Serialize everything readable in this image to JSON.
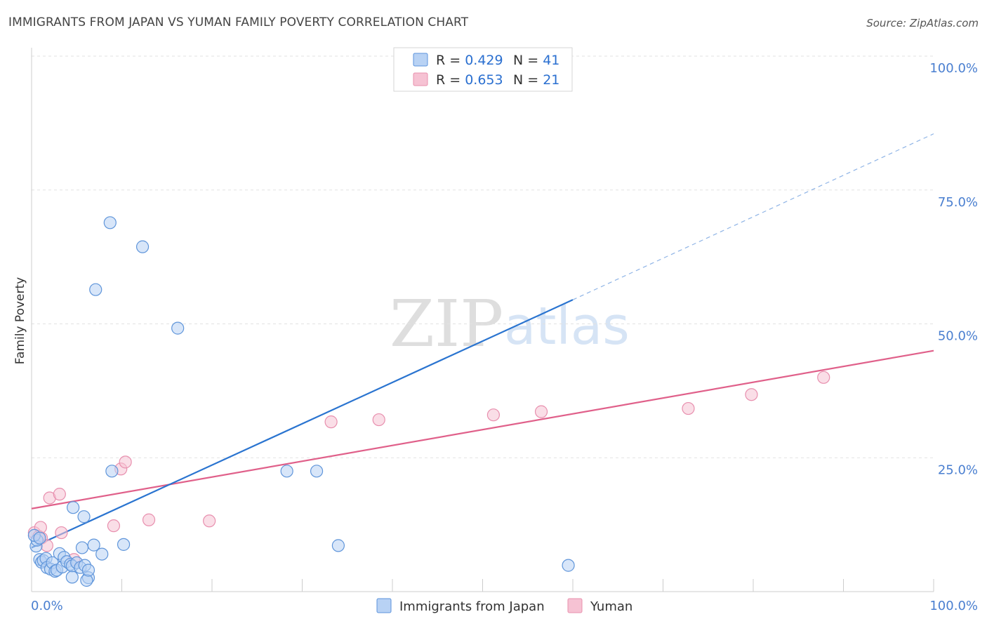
{
  "title": "IMMIGRANTS FROM JAPAN VS YUMAN FAMILY POVERTY CORRELATION CHART",
  "source": "Source: ZipAtlas.com",
  "watermark": {
    "zip": "ZIP",
    "atlas": "atlas"
  },
  "colors": {
    "blue": "#2a74d0",
    "blue_fill": "#b8d2f4",
    "pink": "#e0608a",
    "pink_fill": "#f6c2d3",
    "tick_label": "#4a7fd0",
    "grid": "#e2e2e2"
  },
  "legend": {
    "series1": {
      "r_label": "R = ",
      "r_value": "0.429",
      "n_label": "N = ",
      "n_value": "41"
    },
    "series2": {
      "r_label": "R = ",
      "r_value": "0.653",
      "n_label": "N = ",
      "n_value": "21"
    }
  },
  "chart_data": {
    "type": "scatter",
    "title": "IMMIGRANTS FROM JAPAN VS YUMAN FAMILY POVERTY CORRELATION CHART",
    "xlabel": "",
    "ylabel": "Family Poverty",
    "xlim": [
      0,
      100
    ],
    "ylim": [
      0,
      100
    ],
    "x_tick_labels": [
      "0.0%",
      "100.0%"
    ],
    "y_tick_labels": [
      "100.0%",
      "75.0%",
      "50.0%",
      "25.0%"
    ],
    "y_tick_values": [
      100,
      75,
      50,
      25
    ],
    "gridlines": [
      25,
      50,
      75,
      100
    ],
    "legend_position": "bottom",
    "series": [
      {
        "name": "Immigrants from Japan",
        "color": "#2a74d0",
        "points": [
          [
            0.5,
            8.5
          ],
          [
            0.6,
            9.6
          ],
          [
            0.9,
            6.0
          ],
          [
            1.1,
            5.5
          ],
          [
            1.3,
            5.8
          ],
          [
            1.6,
            6.2
          ],
          [
            1.7,
            4.5
          ],
          [
            2.1,
            4.2
          ],
          [
            2.3,
            5.4
          ],
          [
            2.6,
            3.8
          ],
          [
            2.8,
            4.0
          ],
          [
            3.1,
            7.1
          ],
          [
            3.4,
            4.6
          ],
          [
            3.6,
            6.4
          ],
          [
            3.9,
            5.6
          ],
          [
            4.3,
            5.1
          ],
          [
            4.5,
            4.8
          ],
          [
            5.0,
            5.4
          ],
          [
            5.4,
            4.5
          ],
          [
            5.9,
            4.9
          ],
          [
            6.3,
            2.6
          ],
          [
            6.1,
            2.1
          ],
          [
            6.3,
            4.0
          ],
          [
            4.5,
            2.7
          ],
          [
            4.6,
            15.7
          ],
          [
            5.8,
            14.0
          ],
          [
            6.9,
            8.7
          ],
          [
            5.6,
            8.2
          ],
          [
            7.8,
            7.0
          ],
          [
            10.2,
            8.8
          ],
          [
            8.9,
            22.5
          ],
          [
            7.1,
            56.4
          ],
          [
            8.7,
            68.9
          ],
          [
            12.3,
            64.4
          ],
          [
            16.2,
            49.2
          ],
          [
            28.3,
            22.5
          ],
          [
            31.6,
            22.5
          ],
          [
            34.0,
            8.6
          ],
          [
            59.5,
            4.9
          ],
          [
            0.3,
            10.5
          ],
          [
            0.9,
            10.0
          ]
        ],
        "trend": {
          "x0": 0,
          "y0": 8.2,
          "x1": 60,
          "y1": 54.5,
          "dashed_to": {
            "x": 100,
            "y": 85.5
          }
        },
        "R": 0.429,
        "N": 41
      },
      {
        "name": "Yuman",
        "color": "#e0608a",
        "points": [
          [
            0.3,
            11.0
          ],
          [
            0.8,
            10.3
          ],
          [
            1.1,
            10.0
          ],
          [
            1.7,
            8.6
          ],
          [
            2.0,
            17.5
          ],
          [
            3.1,
            18.2
          ],
          [
            3.3,
            11.0
          ],
          [
            4.7,
            6.0
          ],
          [
            9.1,
            12.3
          ],
          [
            9.9,
            22.9
          ],
          [
            10.4,
            24.2
          ],
          [
            13.0,
            13.4
          ],
          [
            19.7,
            13.2
          ],
          [
            33.2,
            31.7
          ],
          [
            38.5,
            32.1
          ],
          [
            51.2,
            33.0
          ],
          [
            56.5,
            33.6
          ],
          [
            72.8,
            34.2
          ],
          [
            79.8,
            36.8
          ],
          [
            87.8,
            40.0
          ],
          [
            1.0,
            12.0
          ]
        ],
        "trend": {
          "x0": 0,
          "y0": 15.5,
          "x1": 100,
          "y1": 45.0
        },
        "R": 0.653,
        "N": 21
      }
    ]
  }
}
